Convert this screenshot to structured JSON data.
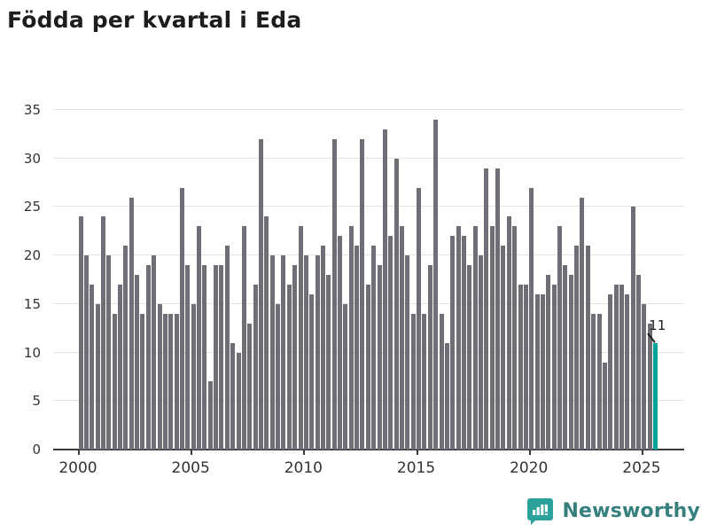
{
  "title": "Födda per kvartal i Eda",
  "chart_data": {
    "type": "bar",
    "title": "Födda per kvartal i Eda",
    "xlabel": "",
    "ylabel": "",
    "x_unit": "quarter",
    "start_period": "2000Q1",
    "end_period": "2025Q3",
    "x_tick_labels": [
      "2000",
      "2005",
      "2010",
      "2015",
      "2020",
      "2025"
    ],
    "y_tick_labels": [
      "0",
      "5",
      "10",
      "15",
      "20",
      "25",
      "30",
      "35"
    ],
    "ylim": [
      0,
      35
    ],
    "grid": "horizontal",
    "legend": "none",
    "values": [
      24,
      20,
      17,
      15,
      24,
      20,
      14,
      17,
      21,
      26,
      18,
      14,
      19,
      20,
      15,
      14,
      14,
      14,
      27,
      19,
      15,
      23,
      19,
      7,
      19,
      19,
      21,
      11,
      10,
      23,
      13,
      17,
      32,
      24,
      20,
      15,
      20,
      17,
      19,
      23,
      20,
      16,
      20,
      21,
      18,
      32,
      22,
      15,
      23,
      21,
      32,
      17,
      21,
      19,
      33,
      22,
      30,
      23,
      20,
      14,
      27,
      14,
      19,
      34,
      14,
      11,
      22,
      23,
      22,
      19,
      23,
      20,
      29,
      23,
      29,
      21,
      24,
      23,
      17,
      17,
      27,
      16,
      16,
      18,
      17,
      23,
      19,
      18,
      21,
      26,
      21,
      14,
      14,
      9,
      16,
      17,
      17,
      16,
      25,
      18,
      15,
      13,
      11
    ],
    "highlight_last": true,
    "last_value_label": "11",
    "bar_color": "#6e6e76",
    "highlight_color": "#00a39c",
    "gridline_color": "#e4e4e4",
    "axis_text_color": "#333333",
    "title_color": "#1d1d1d"
  },
  "branding": {
    "logo_text": "Newsworthy",
    "logo_icon": "bar-chart-speech-bubble-icon",
    "logo_icon_color": "#2ba29c",
    "logo_text_color": "#35807e"
  }
}
